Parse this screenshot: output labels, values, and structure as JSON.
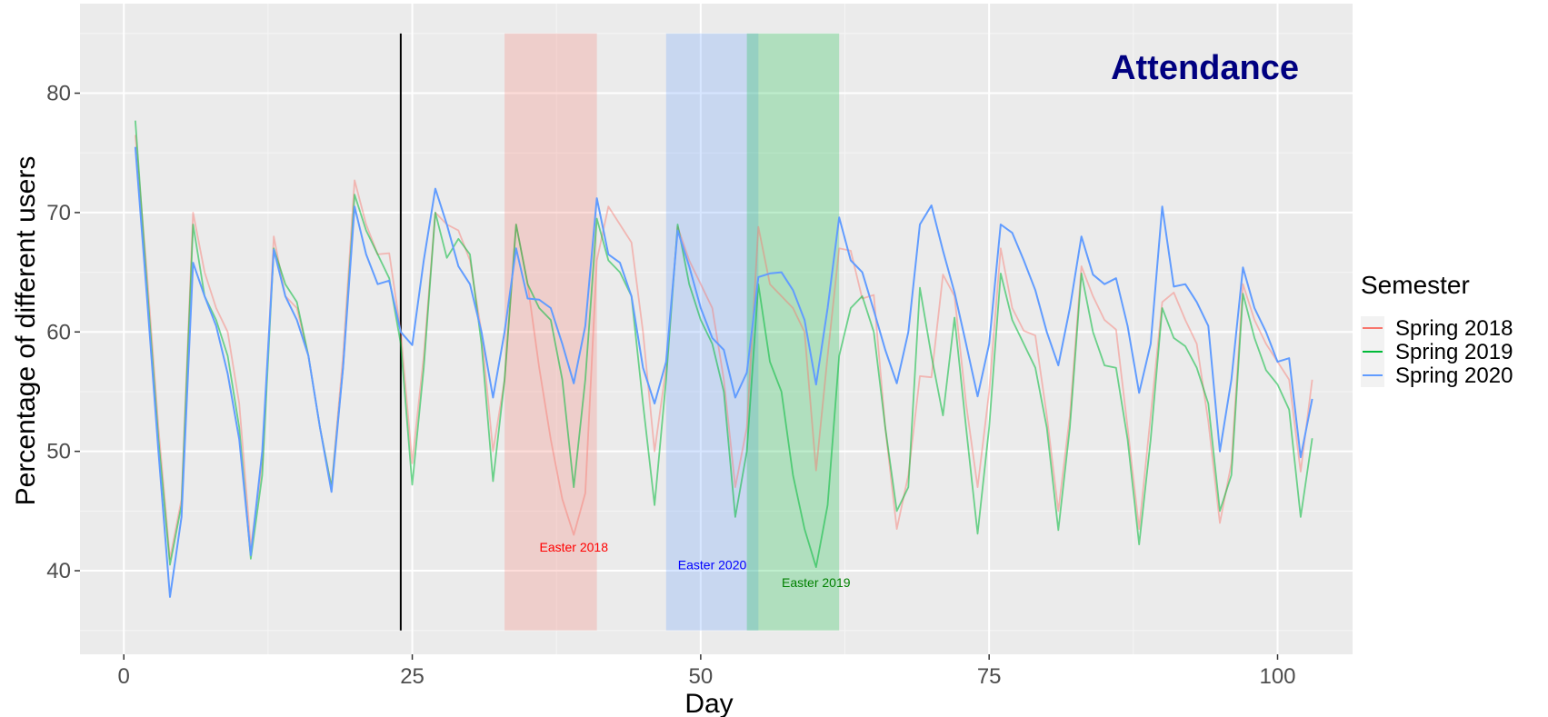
{
  "chart_data": {
    "type": "line",
    "title": "Attendance",
    "xlabel": "Day",
    "ylabel": "Percentage of different users",
    "xlim": [
      -3.8,
      106.5
    ],
    "ylim": [
      33,
      87.5
    ],
    "xticks": [
      0,
      25,
      50,
      75,
      100
    ],
    "yticks": [
      40,
      50,
      60,
      70,
      80
    ],
    "grid": true,
    "legend": {
      "title": "Semester",
      "position": "right"
    },
    "vline": 24,
    "bands": [
      {
        "name": "Easter 2018",
        "x0": 33.0,
        "x1": 41.0,
        "ymin": 35,
        "ymax": 85,
        "color": "#F8766D",
        "label_x": 39.0,
        "label_y": 42.0
      },
      {
        "name": "Easter 2020",
        "x0": 47.0,
        "x1": 55.0,
        "ymin": 35,
        "ymax": 85,
        "color": "#619CFF",
        "label_x": 51.0,
        "label_y": 40.5
      },
      {
        "name": "Easter 2019",
        "x0": 54.0,
        "x1": 62.0,
        "ymin": 35,
        "ymax": 85,
        "color": "#00BA38",
        "label_x": 60.0,
        "label_y": 39.0
      }
    ],
    "x": [
      1,
      2,
      3,
      4,
      5,
      6,
      7,
      8,
      9,
      10,
      11,
      12,
      13,
      14,
      15,
      16,
      17,
      18,
      19,
      20,
      21,
      22,
      23,
      24,
      25,
      26,
      27,
      28,
      29,
      30,
      31,
      32,
      33,
      34,
      35,
      36,
      37,
      38,
      39,
      40,
      41,
      42,
      43,
      44,
      45,
      46,
      47,
      48,
      49,
      50,
      51,
      52,
      53,
      54,
      55,
      56,
      57,
      58,
      59,
      60,
      61,
      62,
      63,
      64,
      65,
      66,
      67,
      68,
      69,
      70,
      71,
      72,
      73,
      74,
      75,
      76,
      77,
      78,
      79,
      80,
      81,
      82,
      83,
      84,
      85,
      86,
      87,
      88,
      89,
      90,
      91,
      92,
      93,
      94,
      95,
      96,
      97,
      98,
      99,
      100,
      101,
      102,
      103
    ],
    "series": [
      {
        "name": "Spring 2018",
        "color": "#F8766D",
        "opacity": 0.45,
        "values": [
          76.5,
          65,
          52,
          41,
          46,
          70,
          65,
          62,
          60,
          54,
          42,
          49,
          68,
          63,
          62,
          58,
          52,
          47,
          58,
          72.7,
          69,
          66.5,
          66.6,
          60,
          49,
          58,
          70,
          69,
          68.5,
          66,
          60,
          50,
          56,
          69,
          64,
          57,
          51,
          46,
          43,
          46.5,
          66,
          70.5,
          69,
          67.5,
          60,
          50,
          57,
          68.8,
          66,
          64,
          62,
          56,
          47,
          52,
          68.8,
          64,
          63,
          62,
          60,
          48.4,
          58,
          67,
          66.8,
          62.8,
          63.1,
          52,
          43.5,
          48,
          56.3,
          56.2,
          64.8,
          63,
          54,
          47,
          55,
          67,
          62,
          60.1,
          59.7,
          53,
          45,
          53,
          65.5,
          63,
          61,
          60.2,
          52,
          43.5,
          53,
          62.5,
          63.3,
          61,
          59,
          52.5,
          44,
          49,
          64,
          61,
          59,
          57.5,
          56,
          48.3,
          56
        ]
      },
      {
        "name": "Spring 2019",
        "color": "#00BA38",
        "opacity": 0.55,
        "values": [
          77.7,
          64,
          51,
          40.5,
          45.5,
          69,
          63,
          61,
          58,
          52,
          41,
          48,
          67,
          64,
          62.5,
          58,
          52,
          47,
          57,
          71.5,
          68.5,
          66.5,
          64.5,
          59,
          47.2,
          57,
          70,
          66.2,
          67.8,
          66.5,
          59,
          47.5,
          56,
          69,
          64,
          62,
          61,
          56,
          47,
          56,
          69.5,
          66,
          65,
          63,
          54,
          45.5,
          56,
          69,
          64,
          61,
          59,
          55,
          44.5,
          50,
          64,
          57.5,
          55,
          48,
          43.5,
          40.3,
          45.5,
          58,
          62,
          63,
          60,
          52,
          45,
          47,
          63.7,
          58,
          53,
          61.2,
          52,
          43.1,
          52,
          64.9,
          61,
          59,
          57,
          52,
          43.4,
          52,
          64.9,
          60,
          57.2,
          57,
          51,
          42.2,
          51,
          62,
          59.5,
          58.8,
          57,
          54,
          45,
          48,
          63.2,
          59.5,
          56.8,
          55.6,
          53.5,
          44.5,
          51.1
        ]
      },
      {
        "name": "Spring 2020",
        "color": "#619CFF",
        "opacity": 1.0,
        "values": [
          75.5,
          63,
          50,
          37.8,
          44.5,
          65.8,
          63,
          60.5,
          56.5,
          51,
          41.3,
          50,
          66.9,
          63,
          61,
          58,
          52,
          46.6,
          57,
          70.5,
          66.5,
          64,
          64.3,
          60,
          58.9,
          66,
          72,
          69,
          65.5,
          64,
          60,
          54.5,
          60,
          67,
          62.8,
          62.7,
          62,
          59,
          55.7,
          60.5,
          71.2,
          66.5,
          65.8,
          63,
          57,
          54,
          57.5,
          68.5,
          65.5,
          62,
          59.5,
          58.5,
          54.5,
          56.6,
          64.6,
          64.9,
          65,
          63.5,
          61,
          55.6,
          62,
          69.6,
          66,
          65,
          61.8,
          58.5,
          55.7,
          60,
          69,
          70.6,
          66.8,
          63.3,
          59,
          54.6,
          59,
          69,
          68.3,
          66,
          63.5,
          60,
          57.2,
          62,
          68,
          64.8,
          64,
          64.5,
          60.5,
          54.9,
          59,
          70.5,
          63.8,
          64,
          62.5,
          60.5,
          50,
          56,
          65.4,
          62,
          60,
          57.5,
          57.8,
          49.5,
          54.4
        ]
      }
    ]
  }
}
